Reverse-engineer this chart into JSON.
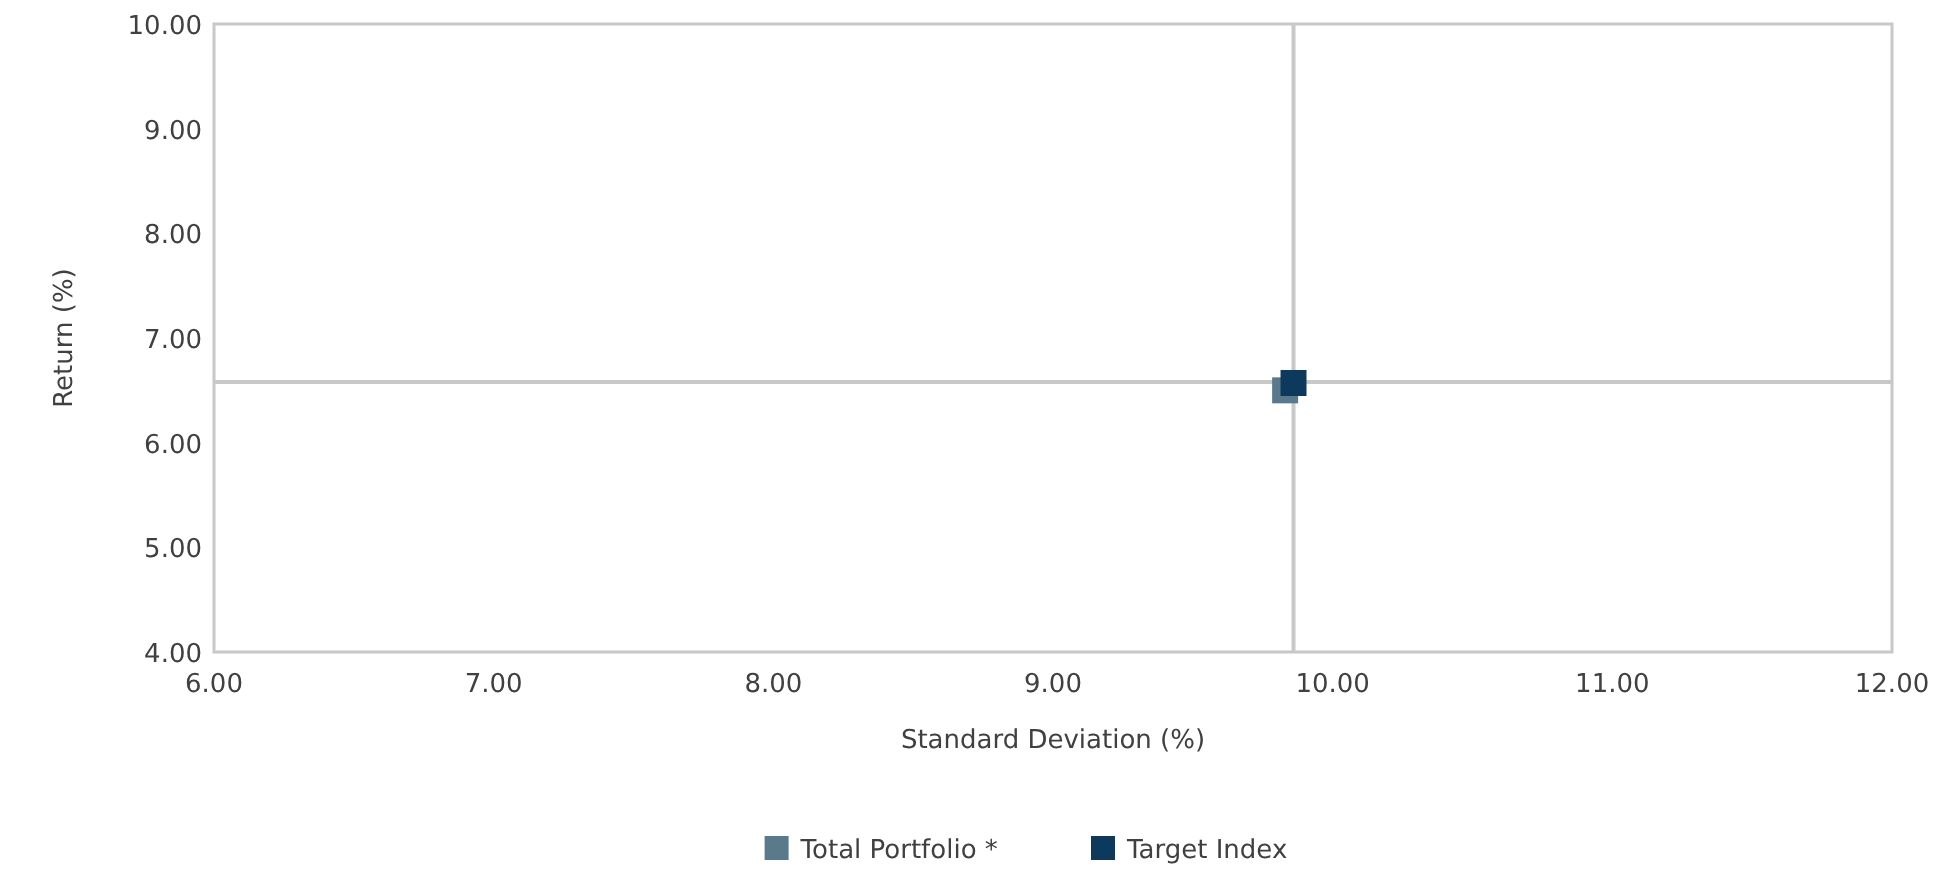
{
  "chart_data": {
    "type": "scatter",
    "xlabel": "Standard Deviation (%)",
    "ylabel": "Return (%)",
    "xlim": [
      6,
      12
    ],
    "xticks": [
      {
        "value": 6,
        "label": "6.00"
      },
      {
        "value": 7,
        "label": "7.00"
      },
      {
        "value": 8,
        "label": "8.00"
      },
      {
        "value": 9,
        "label": "9.00"
      },
      {
        "value": 10,
        "label": "10.00"
      },
      {
        "value": 11,
        "label": "11.00"
      },
      {
        "value": 12,
        "label": "12.00"
      }
    ],
    "ylim": [
      4,
      10
    ],
    "yticks": [
      {
        "value": 4,
        "label": "4.00"
      },
      {
        "value": 5,
        "label": "5.00"
      },
      {
        "value": 6,
        "label": "6.00"
      },
      {
        "value": 7,
        "label": "7.00"
      },
      {
        "value": 8,
        "label": "8.00"
      },
      {
        "value": 9,
        "label": "9.00"
      },
      {
        "value": 10,
        "label": "10.00"
      }
    ],
    "series": [
      {
        "name": "Total Portfolio *",
        "color": "#5a7a8c",
        "x": [
          9.83
        ],
        "values": [
          6.5
        ]
      },
      {
        "name": "Target Index",
        "color": "#0d3a5c",
        "x": [
          9.86
        ],
        "values": [
          6.57
        ]
      }
    ],
    "ref_lines": [
      {
        "axis": "x",
        "value": 9.86,
        "color": "#c8c8c8"
      },
      {
        "axis": "y",
        "value": 6.58,
        "color": "#c8c8c8"
      }
    ],
    "marker": "square",
    "legend": "bottom",
    "grid": false
  }
}
